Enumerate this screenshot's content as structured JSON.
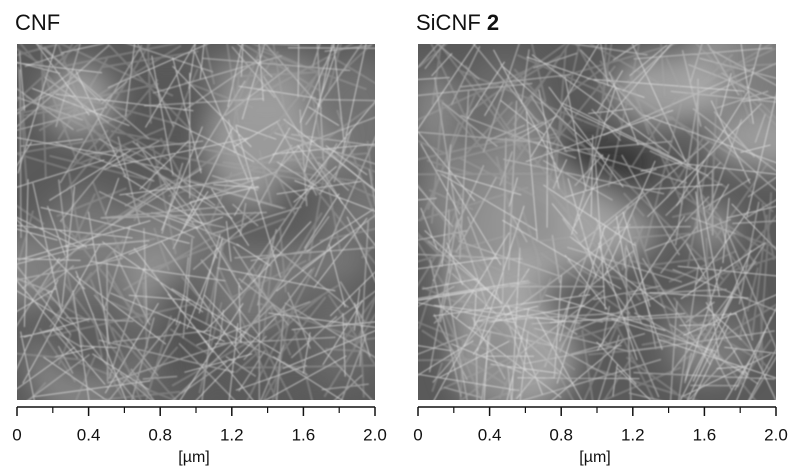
{
  "panels": [
    {
      "title": "CNF",
      "axis": {
        "xlim": [
          0,
          2
        ],
        "xticks": [
          0,
          0.4,
          0.8,
          1.2,
          1.6,
          {
            "value": 2,
            "label": "2.0"
          }
        ],
        "minor_xticks": [
          0.2,
          0.6,
          1.0,
          1.4,
          1.8
        ],
        "label": "[µm]"
      }
    },
    {
      "title": "SiCNF",
      "title_bold": "2",
      "axis": {
        "xlim": [
          0,
          2
        ],
        "xticks": [
          0,
          0.4,
          0.8,
          1.2,
          1.6,
          {
            "value": 2,
            "label": "2.0"
          }
        ],
        "minor_xticks": [
          0.2,
          0.6,
          1.0,
          1.4,
          1.8
        ],
        "label": "[µm]"
      }
    }
  ]
}
